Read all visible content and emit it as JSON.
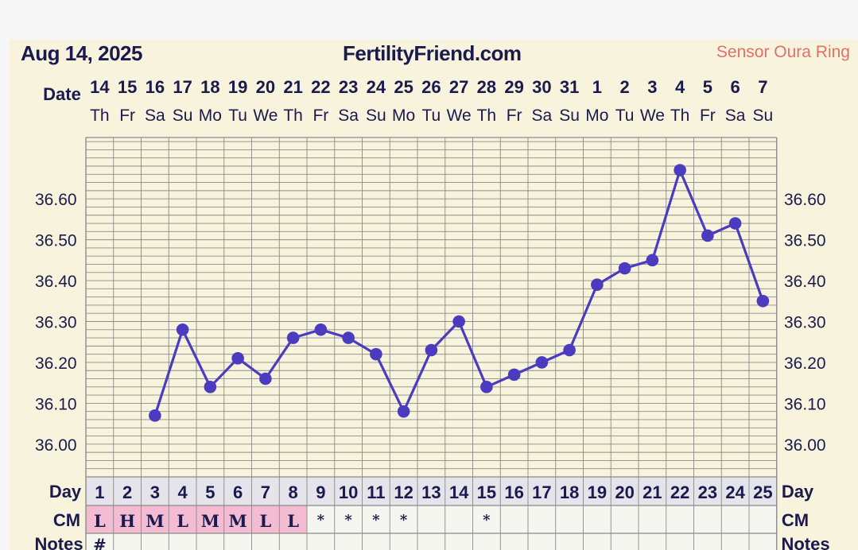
{
  "header": {
    "date": "Aug 14, 2025",
    "site": "FertilityFriend.com",
    "sensor": "Sensor Oura Ring"
  },
  "labels": {
    "date_row": "Date",
    "day_row": "Day",
    "cm_row": "CM",
    "notes_row": "Notes"
  },
  "colors": {
    "background": "#f8f3dd",
    "grid": "#8a8a8a",
    "line": "#4b3cbf",
    "text": "#1a1a4e",
    "cm_highlight": "#f4bcd2",
    "day_row_bg": "#e4e4ea"
  },
  "chart_data": {
    "type": "line",
    "x": [
      "14",
      "15",
      "16",
      "17",
      "18",
      "19",
      "20",
      "21",
      "22",
      "23",
      "24",
      "25",
      "26",
      "27",
      "28",
      "29",
      "30",
      "31",
      "1",
      "2",
      "3",
      "4",
      "5",
      "6",
      "7"
    ],
    "weekdays": [
      "Th",
      "Fr",
      "Sa",
      "Su",
      "Mo",
      "Tu",
      "We",
      "Th",
      "Fr",
      "Sa",
      "Su",
      "Mo",
      "Tu",
      "We",
      "Th",
      "Fr",
      "Sa",
      "Su",
      "Mo",
      "Tu",
      "We",
      "Th",
      "Fr",
      "Sa",
      "Su"
    ],
    "cycle_days": [
      "1",
      "2",
      "3",
      "4",
      "5",
      "6",
      "7",
      "8",
      "9",
      "10",
      "11",
      "12",
      "13",
      "14",
      "15",
      "16",
      "17",
      "18",
      "19",
      "20",
      "21",
      "22",
      "23",
      "24",
      "25"
    ],
    "series": [
      {
        "values": [
          null,
          null,
          36.07,
          36.28,
          36.14,
          36.21,
          36.16,
          36.26,
          36.28,
          36.26,
          36.22,
          36.08,
          36.23,
          36.3,
          36.14,
          36.17,
          36.2,
          36.23,
          36.39,
          36.43,
          36.45,
          36.67,
          36.51,
          36.54,
          36.35
        ]
      }
    ],
    "y_ticks": [
      "36.00",
      "36.10",
      "36.20",
      "36.30",
      "36.40",
      "36.50",
      "36.60"
    ],
    "ylim": [
      35.92,
      36.75
    ],
    "cm": [
      "L",
      "H",
      "M",
      "L",
      "M",
      "M",
      "L",
      "L",
      "*",
      "*",
      "*",
      "*",
      "",
      "",
      "*",
      "",
      "",
      "",
      "",
      "",
      "",
      "",
      "",
      "",
      ""
    ],
    "cm_highlighted": [
      true,
      true,
      true,
      true,
      true,
      true,
      true,
      true,
      false,
      false,
      false,
      false,
      false,
      false,
      false,
      false,
      false,
      false,
      false,
      false,
      false,
      false,
      false,
      false,
      false
    ],
    "notes": [
      "#",
      "",
      "",
      "",
      "",
      "",
      "",
      "",
      "",
      "",
      "",
      "",
      "",
      "",
      "",
      "",
      "",
      "",
      "",
      "",
      "",
      "",
      "",
      "",
      ""
    ],
    "grid": true
  }
}
